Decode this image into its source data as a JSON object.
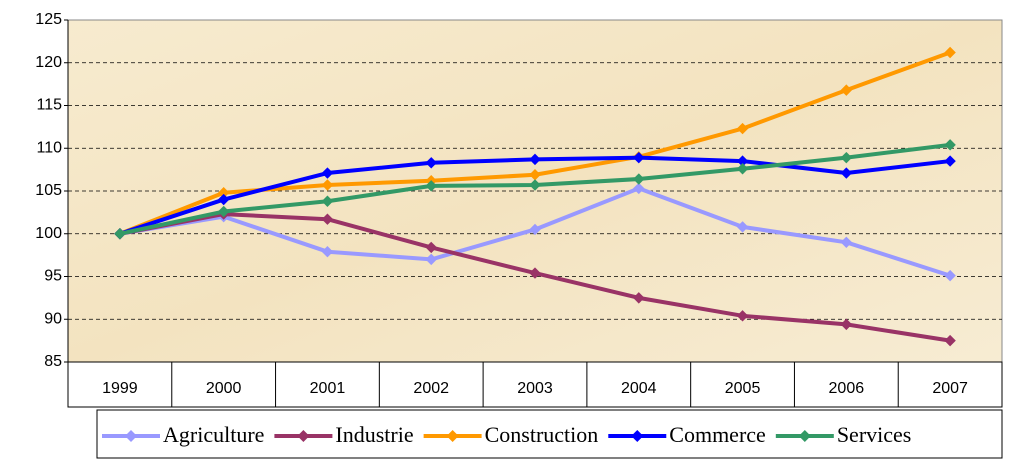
{
  "chart_data": {
    "type": "line",
    "categories": [
      "1999",
      "2000",
      "2001",
      "2002",
      "2003",
      "2004",
      "2005",
      "2006",
      "2007"
    ],
    "series": [
      {
        "name": "Agriculture",
        "color": "#9999ff",
        "values": [
          100,
          102,
          97.9,
          97,
          100.5,
          105.3,
          100.8,
          99,
          95.1
        ]
      },
      {
        "name": "Industrie",
        "color": "#993366",
        "values": [
          100,
          102.3,
          101.7,
          98.4,
          95.4,
          92.5,
          90.4,
          89.4,
          87.5
        ]
      },
      {
        "name": "Construction",
        "color": "#ff9900",
        "values": [
          100,
          104.8,
          105.7,
          106.2,
          106.9,
          109,
          112.3,
          116.8,
          121.2
        ]
      },
      {
        "name": "Commerce",
        "color": "#0000ff",
        "values": [
          100,
          104,
          107.1,
          108.3,
          108.7,
          108.9,
          108.5,
          107.1,
          108.5
        ]
      },
      {
        "name": "Services",
        "color": "#339966",
        "values": [
          100,
          102.6,
          103.8,
          105.6,
          105.7,
          106.4,
          107.6,
          108.9,
          110.4
        ]
      }
    ],
    "ylim": [
      85,
      125
    ],
    "yticks": [
      85,
      90,
      95,
      100,
      105,
      110,
      115,
      120,
      125
    ],
    "grid": true,
    "legend": "bottom"
  }
}
